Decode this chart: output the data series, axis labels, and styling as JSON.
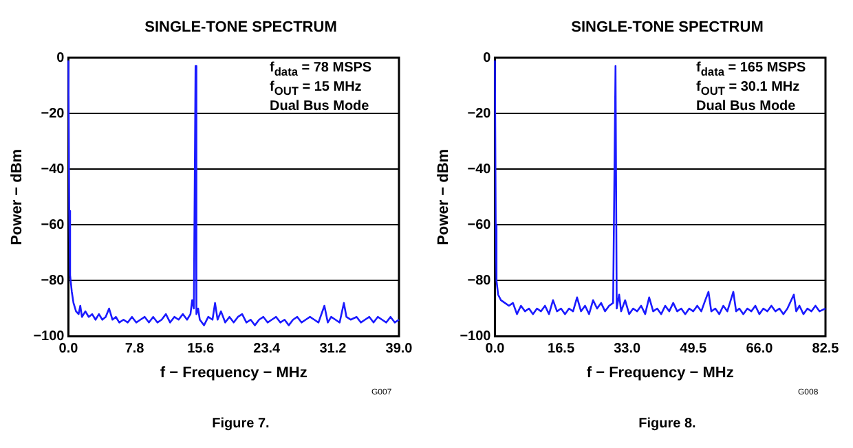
{
  "chart_data": [
    {
      "type": "line",
      "title": "SINGLE-TONE SPECTRUM",
      "xlabel": "f − Frequency − MHz",
      "ylabel": "Power − dBm",
      "annotations": [
        "f$_{data}$ = 78 MSPS",
        "f$_{OUT}$ = 15 MHz",
        "Dual Bus Mode",
        "G007",
        "Figure 7."
      ],
      "xlim": [
        0,
        39
      ],
      "xticks": [
        {
          "value": 0,
          "label": "0.0"
        },
        7.8,
        15.6,
        23.4,
        31.2,
        {
          "value": 39,
          "label": "39.0"
        }
      ],
      "ylim": [
        -100,
        0
      ],
      "yticks": [
        {
          "value": -100,
          "label": "−100"
        },
        {
          "value": -80,
          "label": "−80"
        },
        {
          "value": -60,
          "label": "−60"
        },
        {
          "value": -40,
          "label": "−40"
        },
        {
          "value": -20,
          "label": "−20"
        },
        0
      ],
      "grid": "y",
      "legend": false,
      "series": [
        {
          "color": "#1a1aff",
          "x": [
            0,
            0.1,
            0.2,
            0.4,
            0.6,
            0.9,
            1.2,
            1.4,
            1.6,
            2.0,
            2.4,
            2.8,
            3.2,
            3.6,
            4.0,
            4.4,
            4.8,
            5.2,
            5.6,
            6.0,
            6.5,
            7.0,
            7.5,
            8.0,
            8.5,
            9.0,
            9.5,
            10.0,
            10.5,
            11.0,
            11.5,
            12.0,
            12.5,
            13.0,
            13.5,
            14.0,
            14.4,
            14.6,
            14.8,
            15.0,
            15.1,
            15.3,
            15.5,
            16.0,
            16.5,
            17.0,
            17.3,
            17.6,
            18.0,
            18.5,
            19.0,
            19.5,
            20.0,
            20.5,
            21.0,
            21.5,
            22.0,
            22.5,
            23.0,
            23.5,
            24.0,
            24.5,
            25.0,
            25.5,
            26.0,
            26.5,
            27.0,
            27.5,
            28.0,
            28.5,
            29.0,
            29.5,
            30.2,
            30.6,
            31.0,
            31.5,
            32.0,
            32.5,
            32.8,
            33.3,
            34.0,
            34.5,
            35.0,
            35.5,
            36.0,
            36.5,
            37.0,
            37.5,
            38.0,
            38.5,
            39.0
          ],
          "values": [
            -1,
            -55,
            -78,
            -84,
            -88,
            -91,
            -92,
            -89,
            -93,
            -91,
            -93,
            -92,
            -94,
            -92,
            -94,
            -93,
            -90,
            -94,
            -93,
            -95,
            -94,
            -95,
            -93,
            -95,
            -94,
            -93,
            -95,
            -93,
            -95,
            -94,
            -92,
            -95,
            -93,
            -94,
            -92,
            -94,
            -92,
            -87,
            -90,
            -3,
            -92,
            -90,
            -94,
            -96,
            -93,
            -94,
            -88,
            -94,
            -91,
            -95,
            -93,
            -95,
            -93,
            -92,
            -95,
            -94,
            -96,
            -94,
            -93,
            -95,
            -94,
            -93,
            -95,
            -94,
            -96,
            -94,
            -93,
            -95,
            -94,
            -93,
            -94,
            -95,
            -89,
            -95,
            -93,
            -94,
            -95,
            -88,
            -93,
            -94,
            -93,
            -95,
            -94,
            -93,
            -95,
            -93,
            -94,
            -95,
            -93,
            -95,
            -94
          ]
        }
      ]
    },
    {
      "type": "line",
      "title": "SINGLE-TONE SPECTRUM",
      "xlabel": "f − Frequency − MHz",
      "ylabel": "Power − dBm",
      "annotations": [
        "f$_{data}$ = 165 MSPS",
        "f$_{OUT}$ = 30.1 MHz",
        "Dual Bus Mode",
        "G008",
        "Figure 8."
      ],
      "xlim": [
        0,
        82.5
      ],
      "xticks": [
        {
          "value": 0,
          "label": "0.0"
        },
        16.5,
        {
          "value": 33,
          "label": "33.0"
        },
        49.5,
        {
          "value": 66,
          "label": "66.0"
        },
        82.5
      ],
      "ylim": [
        -100,
        0
      ],
      "yticks": [
        {
          "value": -100,
          "label": "−100"
        },
        {
          "value": -80,
          "label": "−80"
        },
        {
          "value": -60,
          "label": "−60"
        },
        {
          "value": -40,
          "label": "−40"
        },
        {
          "value": -20,
          "label": "−20"
        },
        0
      ],
      "grid": "y",
      "legend": false,
      "series": [
        {
          "color": "#1a1aff",
          "x": [
            0,
            0.2,
            0.4,
            0.8,
            1.5,
            2.5,
            3.5,
            4.5,
            5.5,
            6.5,
            7.5,
            8.5,
            9.5,
            10.5,
            11.5,
            12.5,
            13.5,
            14.5,
            15.5,
            16.5,
            17.5,
            18.5,
            19.5,
            20.5,
            21.5,
            22.5,
            23.5,
            24.5,
            25.5,
            26.5,
            27.5,
            28.5,
            29.5,
            30.1,
            30.4,
            31.0,
            31.5,
            32.5,
            33.5,
            34.5,
            35.5,
            36.5,
            37.5,
            38.5,
            39.5,
            40.5,
            41.5,
            42.5,
            43.5,
            44.5,
            45.5,
            46.5,
            47.5,
            48.5,
            49.5,
            50.5,
            51.5,
            52.5,
            53.3,
            54,
            55,
            56,
            57,
            58,
            59.5,
            60.2,
            61,
            62,
            63,
            64,
            65,
            66,
            67,
            68,
            69,
            70,
            71,
            72,
            73,
            74.6,
            75.2,
            76,
            77,
            78,
            79,
            80,
            81,
            82.5
          ],
          "values": [
            -1,
            -60,
            -80,
            -85,
            -87,
            -88,
            -89,
            -88,
            -92,
            -89,
            -91,
            -90,
            -92,
            -90,
            -91,
            -89,
            -92,
            -87,
            -91,
            -90,
            -92,
            -90,
            -91,
            -86,
            -91,
            -89,
            -92,
            -87,
            -90,
            -88,
            -91,
            -89,
            -88,
            -3,
            -90,
            -85,
            -91,
            -87,
            -92,
            -90,
            -91,
            -89,
            -92,
            -86,
            -91,
            -90,
            -92,
            -89,
            -91,
            -88,
            -91,
            -90,
            -92,
            -90,
            -91,
            -89,
            -91,
            -87,
            -84,
            -91,
            -90,
            -92,
            -89,
            -91,
            -84,
            -91,
            -90,
            -92,
            -90,
            -91,
            -89,
            -92,
            -90,
            -91,
            -89,
            -91,
            -90,
            -92,
            -90,
            -85,
            -91,
            -89,
            -92,
            -90,
            -91,
            -89,
            -91,
            -90
          ]
        }
      ]
    }
  ]
}
